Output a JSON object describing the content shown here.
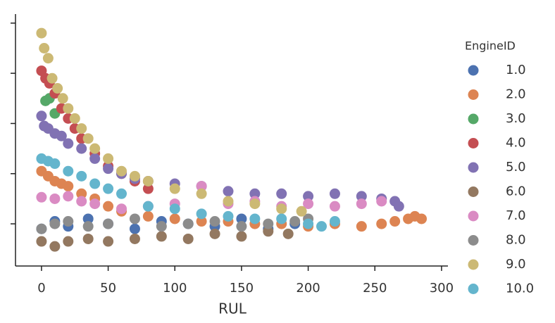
{
  "chart_data": {
    "type": "scatter",
    "x_label": "RUL",
    "legend_title": "EngineID",
    "legend": "right",
    "xlim": [
      -19.5,
      304.8
    ],
    "xticks": [
      0,
      50,
      100,
      150,
      200,
      250,
      300
    ],
    "ylim": [
      -0.84,
      4.18
    ],
    "yticks": [
      0,
      1,
      2,
      3,
      4
    ],
    "series": [
      {
        "name": "1.0",
        "color": "#4c72b0",
        "x": [
          0,
          10,
          20,
          35,
          50,
          70,
          90,
          110,
          130,
          150,
          170,
          190
        ],
        "values": [
          -0.1,
          0.05,
          -0.05,
          0.1,
          0.0,
          -0.1,
          0.05,
          0.0,
          -0.05,
          0.1,
          -0.1,
          0.0
        ]
      },
      {
        "name": "2.0",
        "color": "#dd8452",
        "x": [
          0,
          5,
          10,
          15,
          20,
          30,
          40,
          50,
          60,
          80,
          100,
          120,
          140,
          160,
          180,
          200,
          220,
          240,
          255,
          265,
          275,
          280,
          285
        ],
        "values": [
          1.05,
          0.95,
          0.85,
          0.8,
          0.75,
          0.6,
          0.5,
          0.35,
          0.25,
          0.15,
          0.1,
          0.05,
          0.05,
          0.0,
          0.0,
          -0.05,
          0.0,
          -0.05,
          0.0,
          0.05,
          0.1,
          0.15,
          0.1
        ]
      },
      {
        "name": "3.0",
        "color": "#55a868",
        "x": [
          3,
          6,
          10
        ],
        "values": [
          2.45,
          2.5,
          2.2
        ]
      },
      {
        "name": "4.0",
        "color": "#c44e52",
        "x": [
          0,
          3,
          6,
          10,
          15,
          20,
          25,
          30,
          40,
          50,
          60,
          70,
          80
        ],
        "values": [
          3.05,
          2.9,
          2.8,
          2.6,
          2.3,
          2.1,
          1.9,
          1.7,
          1.4,
          1.15,
          1.0,
          0.85,
          0.7
        ]
      },
      {
        "name": "5.0",
        "color": "#8172b3",
        "x": [
          0,
          2,
          5,
          10,
          15,
          20,
          30,
          40,
          50,
          60,
          70,
          80,
          100,
          120,
          140,
          160,
          180,
          200,
          220,
          240,
          255,
          265,
          268
        ],
        "values": [
          2.15,
          1.95,
          1.9,
          1.8,
          1.75,
          1.6,
          1.5,
          1.3,
          1.1,
          1.0,
          0.9,
          0.85,
          0.8,
          0.75,
          0.65,
          0.6,
          0.6,
          0.55,
          0.6,
          0.55,
          0.5,
          0.45,
          0.35
        ]
      },
      {
        "name": "6.0",
        "color": "#937860",
        "x": [
          0,
          10,
          20,
          35,
          50,
          70,
          90,
          110,
          130,
          150,
          170,
          185
        ],
        "values": [
          -0.35,
          -0.45,
          -0.35,
          -0.3,
          -0.35,
          -0.3,
          -0.25,
          -0.3,
          -0.2,
          -0.25,
          -0.15,
          -0.2
        ]
      },
      {
        "name": "7.0",
        "color": "#da8bc3",
        "x": [
          0,
          10,
          20,
          30,
          40,
          60,
          80,
          100,
          120,
          140,
          160,
          180,
          200,
          220,
          240,
          255
        ],
        "values": [
          0.53,
          0.5,
          0.55,
          0.45,
          0.4,
          0.3,
          0.35,
          0.4,
          0.75,
          0.4,
          0.45,
          0.35,
          0.4,
          0.35,
          0.4,
          0.45
        ]
      },
      {
        "name": "8.0",
        "color": "#8c8c8c",
        "x": [
          0,
          10,
          20,
          35,
          50,
          70,
          90,
          110,
          130,
          150,
          170,
          190,
          200
        ],
        "values": [
          -0.1,
          0.0,
          0.05,
          -0.05,
          0.0,
          0.1,
          -0.05,
          0.0,
          0.05,
          -0.05,
          0.0,
          0.05,
          0.1
        ]
      },
      {
        "name": "9.0",
        "color": "#ccb974",
        "x": [
          0,
          2,
          5,
          8,
          12,
          16,
          20,
          25,
          30,
          35,
          40,
          50,
          60,
          70,
          80,
          100,
          120,
          140,
          160,
          180,
          195
        ],
        "values": [
          3.8,
          3.5,
          3.3,
          2.9,
          2.7,
          2.5,
          2.3,
          2.1,
          1.9,
          1.7,
          1.5,
          1.3,
          1.05,
          0.95,
          0.85,
          0.7,
          0.6,
          0.45,
          0.4,
          0.3,
          0.25
        ]
      },
      {
        "name": "10.0",
        "color": "#64b5cd",
        "x": [
          0,
          5,
          10,
          20,
          30,
          40,
          50,
          60,
          80,
          100,
          120,
          140,
          160,
          180,
          200,
          210,
          220
        ],
        "values": [
          1.3,
          1.25,
          1.2,
          1.05,
          0.95,
          0.8,
          0.7,
          0.6,
          0.35,
          0.3,
          0.2,
          0.15,
          0.1,
          0.1,
          0.0,
          -0.05,
          0.05
        ]
      }
    ]
  }
}
